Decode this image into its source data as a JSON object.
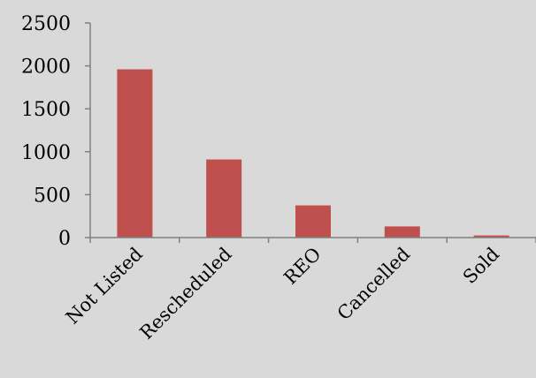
{
  "chart_data": {
    "type": "bar",
    "title": "",
    "xlabel": "",
    "ylabel": "",
    "categories": [
      "Not Listed",
      "Rescheduled",
      "REO",
      "Cancelled",
      "Sold"
    ],
    "values": [
      1960,
      910,
      375,
      130,
      25
    ],
    "ylim": [
      0,
      2500
    ],
    "yticks": [
      0,
      500,
      1000,
      1500,
      2000,
      2500
    ],
    "ytick_labels": [
      "0",
      "500",
      "1000",
      "1500",
      "2000",
      "2500"
    ],
    "grid": false,
    "legend": "none",
    "colors": {
      "bar": "#c0504d",
      "axis": "#808080",
      "background": "#d9d9d9",
      "text": "#000000"
    }
  }
}
